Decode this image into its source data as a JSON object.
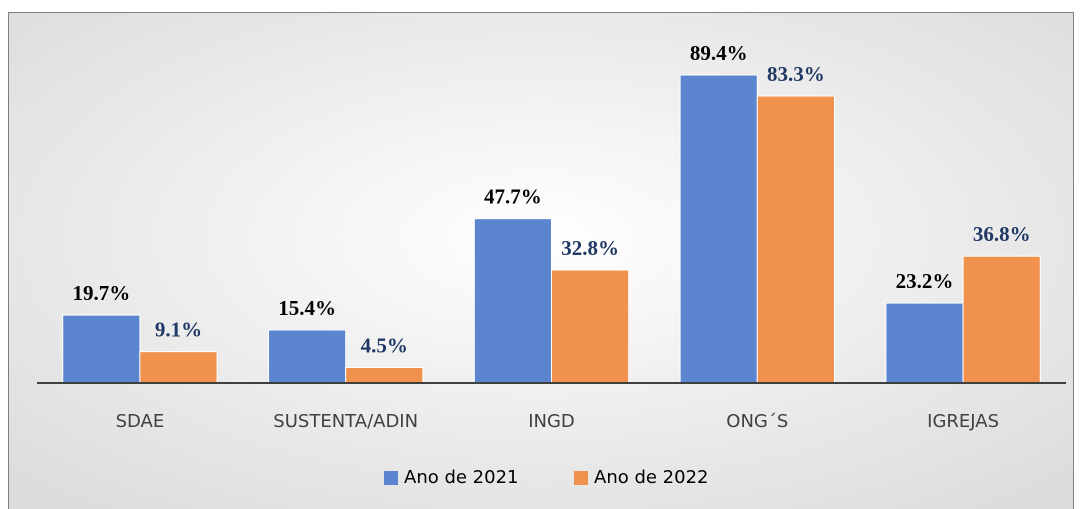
{
  "chart_data": {
    "type": "bar",
    "categories": [
      "SDAE",
      "SUSTENTA/ADIN",
      "INGD",
      "ONG´S",
      "IGREJAS"
    ],
    "series": [
      {
        "name": "Ano de 2021",
        "color": "#5b86cf",
        "label_color": "#000000",
        "values": [
          19.7,
          15.4,
          47.7,
          89.4,
          23.2
        ],
        "value_labels": [
          "19.7%",
          "15.4%",
          "47.7%",
          "89.4%",
          "23.2%"
        ]
      },
      {
        "name": "Ano de 2022",
        "color": "#f0914e",
        "label_color": "#1f3864",
        "values": [
          9.1,
          4.5,
          32.8,
          83.3,
          36.8
        ],
        "value_labels": [
          "9.1%",
          "4.5%",
          "32.8%",
          "83.3%",
          "36.8%"
        ]
      }
    ],
    "ylim": [
      0,
      100
    ],
    "legend": "bottom"
  }
}
